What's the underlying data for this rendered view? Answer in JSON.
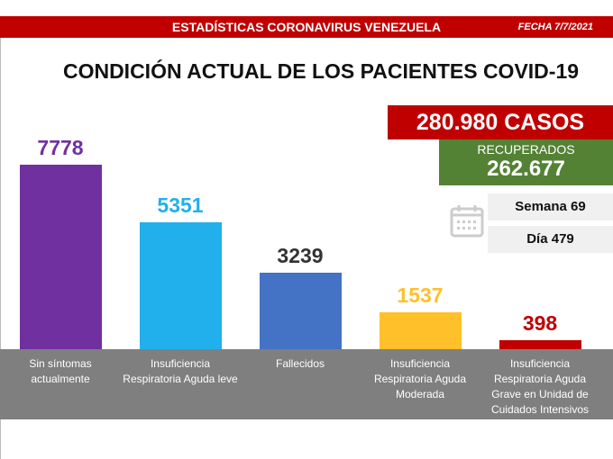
{
  "header": {
    "title": "ESTADÍSTICAS CORONAVIRUS VENEZUELA",
    "date": "FECHA 7/7/2021"
  },
  "summary": {
    "casos": "280.980 CASOS",
    "recuperados_label": "RECUPERADOS",
    "recuperados": "262.677",
    "semana": "Semana 69",
    "dia": "Día 479",
    "icon": "calendar-icon"
  },
  "chart_data": {
    "type": "bar",
    "title": "CONDICIÓN ACTUAL DE LOS PACIENTES COVID-19",
    "categories": [
      "Sin síntomas actualmente",
      "Insuficiencia Respiratoria Aguda leve",
      "Fallecidos",
      "Insuficiencia Respiratoria Aguda Moderada",
      "Insuficiencia Respiratoria Aguda Grave en Unidad de Cuidados Intensivos"
    ],
    "values": [
      7778,
      5351,
      3239,
      1537,
      398
    ],
    "labels": [
      "7778",
      "5351",
      "3239",
      "1537",
      "398"
    ],
    "colors": [
      "#7030a0",
      "#22b0ec",
      "#4472c4",
      "#ffc02a",
      "#c00000"
    ],
    "label_colors": [
      "#7030a0",
      "#22b0ec",
      "#333333",
      "#ffc02a",
      "#c00000"
    ],
    "grid": false
  }
}
